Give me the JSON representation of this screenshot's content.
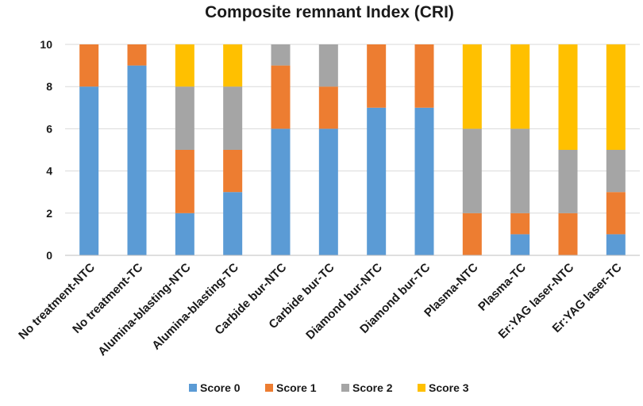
{
  "chart_data": {
    "type": "bar",
    "stacked": true,
    "title": "Composite remnant Index (CRI)",
    "xlabel": "",
    "ylabel": "",
    "ylim": [
      0,
      10
    ],
    "yticks": [
      0,
      2,
      4,
      6,
      8,
      10
    ],
    "grid": true,
    "legend_position": "bottom",
    "categories": [
      "No treatment-NTC",
      "No treatment-TC",
      "Alumina-blasting-NTC",
      "Alumina-blasting-TC",
      "Carbide bur-NTC",
      "Carbide bur-TC",
      "Diamond bur-NTC",
      "Diamond bur-TC",
      "Plasma-NTC",
      "Plasma-TC",
      "Er:YAG laser-NTC",
      "Er:YAG laser-TC"
    ],
    "series": [
      {
        "name": "Score 0",
        "color": "#5B9BD5",
        "values": [
          8,
          9,
          2,
          3,
          6,
          6,
          7,
          7,
          0,
          1,
          0,
          1
        ]
      },
      {
        "name": "Score 1",
        "color": "#ED7D31",
        "values": [
          2,
          1,
          3,
          2,
          3,
          2,
          3,
          3,
          2,
          1,
          2,
          2
        ]
      },
      {
        "name": "Score 2",
        "color": "#A5A5A5",
        "values": [
          0,
          0,
          3,
          3,
          1,
          2,
          0,
          0,
          4,
          4,
          3,
          2
        ]
      },
      {
        "name": "Score 3",
        "color": "#FFC000",
        "values": [
          0,
          0,
          2,
          2,
          0,
          0,
          0,
          0,
          4,
          4,
          5,
          5
        ]
      }
    ]
  }
}
